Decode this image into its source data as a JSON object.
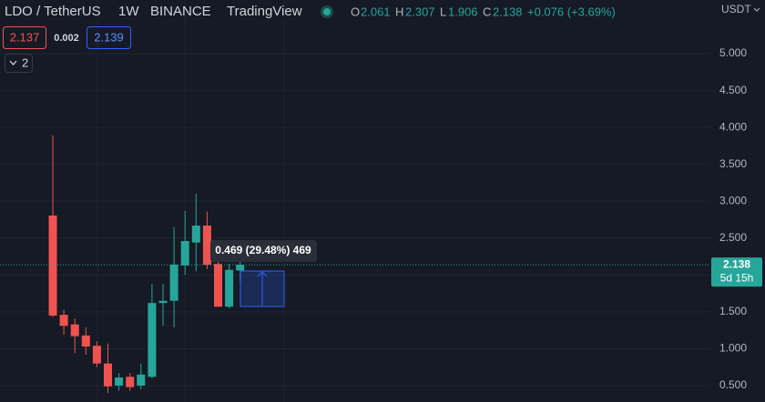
{
  "chart_data": {
    "type": "candlestick",
    "title": "LDO / TetherUS",
    "interval": "1W",
    "exchange": "BINANCE",
    "source": "TradingView",
    "ohlc_labels": [
      "O",
      "H",
      "L",
      "C"
    ],
    "change": "+0.076 (+3.69%)",
    "bid": 2.137,
    "spread": 0.002,
    "ask": 2.139,
    "indicator_count": 2,
    "y_axis_label": "USDT",
    "countdown": "5d 15h",
    "measure_label": "0.469 (29.48%) 469",
    "categories": [
      null,
      null,
      null,
      null,
      null,
      null,
      null,
      null,
      null,
      null,
      null,
      null,
      null,
      null,
      null,
      null,
      null,
      null
    ],
    "open": [
      2.806,
      1.46,
      1.33,
      1.18,
      1.04,
      0.8,
      0.5,
      0.62,
      0.5,
      0.62,
      1.62,
      1.65,
      2.13,
      2.44,
      2.67,
      2.15,
      1.57,
      2.061
    ],
    "high": [
      3.891,
      1.53,
      1.41,
      1.29,
      1.1,
      1.07,
      0.67,
      0.67,
      0.8,
      1.88,
      1.88,
      2.65,
      2.87,
      3.1,
      2.86,
      2.18,
      2.15,
      2.307
    ],
    "low": [
      1.43,
      1.19,
      0.94,
      0.92,
      0.75,
      0.4,
      0.43,
      0.43,
      0.45,
      0.6,
      1.31,
      1.29,
      2.0,
      2.05,
      2.08,
      1.57,
      1.55,
      1.906
    ],
    "close": [
      1.449,
      1.31,
      1.17,
      1.03,
      0.8,
      0.49,
      0.61,
      0.48,
      0.65,
      1.62,
      1.65,
      2.14,
      2.46,
      2.67,
      2.14,
      1.57,
      2.07,
      2.138
    ],
    "up_color": "#26a69a",
    "down_color": "#ef5350",
    "ylim": [
      0.278,
      5.728
    ],
    "yticks": [
      {
        "value": 0.5,
        "label": "0.500"
      },
      {
        "value": 1,
        "label": "1.000"
      },
      {
        "value": 1.5,
        "label": "1.500"
      },
      {
        "value": 2,
        "label": "2.000"
      },
      {
        "value": 2.5,
        "label": "2.500"
      },
      {
        "value": 3,
        "label": "3.000"
      },
      {
        "value": 3.5,
        "label": "3.500"
      },
      {
        "value": 4,
        "label": "4.000"
      },
      {
        "value": 4.5,
        "label": "4.500"
      },
      {
        "value": 5,
        "label": "5.000"
      }
    ],
    "grid": true
  }
}
